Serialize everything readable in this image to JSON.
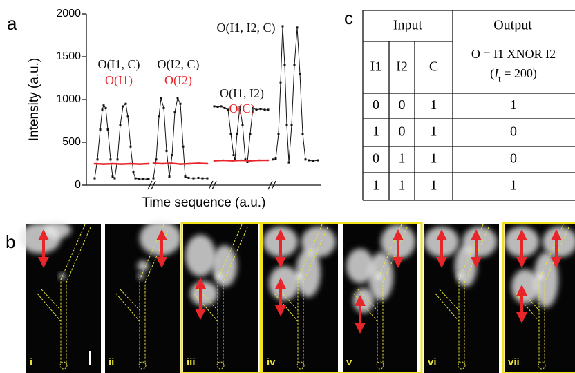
{
  "panel_labels": [
    "a",
    "b",
    "c"
  ],
  "chart_data": {
    "type": "line",
    "xlabel": "Time sequence (a.u.)",
    "ylabel": "Intensity (a.u.)",
    "xlim": [
      0,
      340
    ],
    "ylim": [
      0,
      2000
    ],
    "yticks": [
      0,
      500,
      1000,
      1500,
      2000
    ],
    "grid": false,
    "series": [
      {
        "color": "#111111",
        "x": [
          12,
          16,
          20,
          23,
          25,
          28,
          31,
          35,
          38,
          41,
          45,
          49,
          53,
          57,
          60,
          64,
          68,
          71,
          76,
          82,
          88,
          90,
          93,
          97,
          101,
          105,
          108,
          112,
          116,
          120,
          124,
          128,
          132,
          136,
          140,
          143,
          148,
          155,
          162,
          168,
          175,
          180,
          185,
          190,
          195,
          200,
          205,
          209,
          213,
          215,
          218,
          222,
          226,
          230,
          233,
          237,
          241,
          246,
          252,
          258,
          263,
          266,
          270,
          274,
          278,
          281,
          284,
          287,
          290,
          293,
          297,
          301,
          305,
          309,
          313,
          317,
          322,
          328,
          335
        ],
        "values": [
          80,
          300,
          650,
          880,
          930,
          900,
          650,
          300,
          100,
          80,
          300,
          700,
          920,
          950,
          800,
          450,
          150,
          80,
          70,
          75,
          70,
          70,
          null,
          80,
          300,
          800,
          1015,
          900,
          400,
          100,
          350,
          850,
          1015,
          950,
          450,
          100,
          85,
          80,
          85,
          80,
          80,
          null,
          920,
          910,
          920,
          900,
          880,
          600,
          350,
          300,
          600,
          910,
          700,
          300,
          270,
          600,
          900,
          880,
          890,
          880,
          880,
          null,
          300,
          310,
          600,
          1200,
          1855,
          1400,
          700,
          265,
          700,
          1400,
          1840,
          1300,
          600,
          300,
          290,
          280,
          290
        ]
      },
      {
        "color": "#e8262a",
        "x": [
          12,
          25,
          38,
          51,
          64,
          77,
          90,
          93,
          97,
          110,
          123,
          136,
          149,
          162,
          175,
          180,
          185,
          198,
          211,
          224,
          237,
          250,
          263
        ],
        "values": [
          250,
          245,
          250,
          245,
          250,
          245,
          250,
          null,
          255,
          250,
          255,
          245,
          250,
          255,
          250,
          null,
          285,
          290,
          285,
          290,
          285,
          290,
          290
        ]
      }
    ],
    "annotations": [
      {
        "text": "O(I1, C)",
        "color": "#111111"
      },
      {
        "text": "O(I1)",
        "color": "#e8262a"
      },
      {
        "text": "O(I2, C)",
        "color": "#111111"
      },
      {
        "text": "O(I2)",
        "color": "#e8262a"
      },
      {
        "text": "O(I1, I2)",
        "color": "#111111"
      },
      {
        "text": "O(C)",
        "color": "#e8262a"
      },
      {
        "text": "O(I1, I2, C)",
        "color": "#111111"
      }
    ]
  },
  "table": {
    "header": [
      "Input",
      "Output"
    ],
    "columns": [
      "I1",
      "I2",
      "C"
    ],
    "output_header": "O = I1 XNOR I2",
    "output_note": {
      "prefix": "(",
      "symbol": "I",
      "subscript": "t",
      "suffix": " = 200)"
    },
    "rows": [
      [
        "0",
        "0",
        "1",
        "1"
      ],
      [
        "1",
        "0",
        "1",
        "0"
      ],
      [
        "0",
        "1",
        "1",
        "0"
      ],
      [
        "1",
        "1",
        "1",
        "1"
      ]
    ]
  },
  "images": {
    "labels": [
      "i",
      "ii",
      "iii",
      "iv",
      "v",
      "vi",
      "vii"
    ]
  }
}
